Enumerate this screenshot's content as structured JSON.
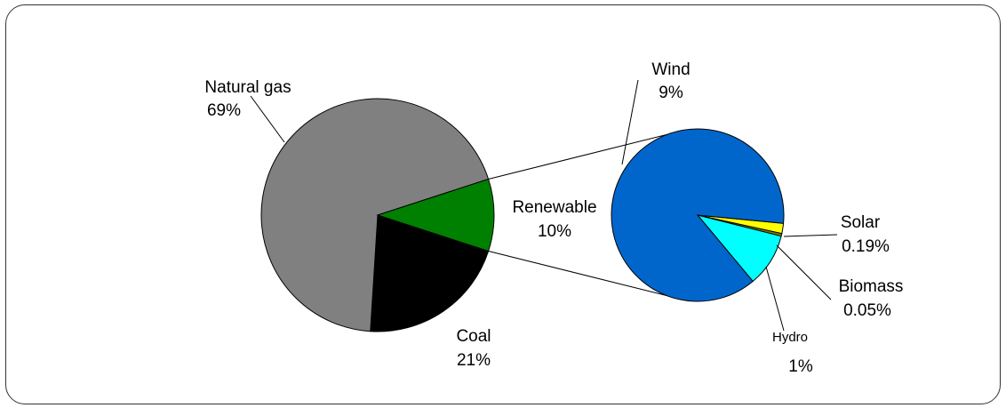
{
  "chart_data": {
    "type": "pie",
    "title": "",
    "main_pie": {
      "slices": [
        {
          "name": "Natural gas",
          "label": "69%",
          "value": 69,
          "color": "#808080"
        },
        {
          "name": "Coal",
          "label": "21%",
          "value": 21,
          "color": "#000000"
        },
        {
          "name": "Renewable",
          "label": "10%",
          "value": 10,
          "color": "#008000"
        }
      ]
    },
    "breakdown_pie": {
      "of": "Renewable",
      "slices": [
        {
          "name": "Wind",
          "label": "9%",
          "value": 8.76,
          "color": "#0066CC"
        },
        {
          "name": "Solar",
          "label": "0.19%",
          "value": 0.19,
          "color": "#FFFF00"
        },
        {
          "name": "Biomass",
          "label": "0.05%",
          "value": 0.05,
          "color": "#808000"
        },
        {
          "name": "Hydro",
          "label": "1%",
          "value": 1,
          "color": "#00FFFF"
        }
      ]
    }
  }
}
